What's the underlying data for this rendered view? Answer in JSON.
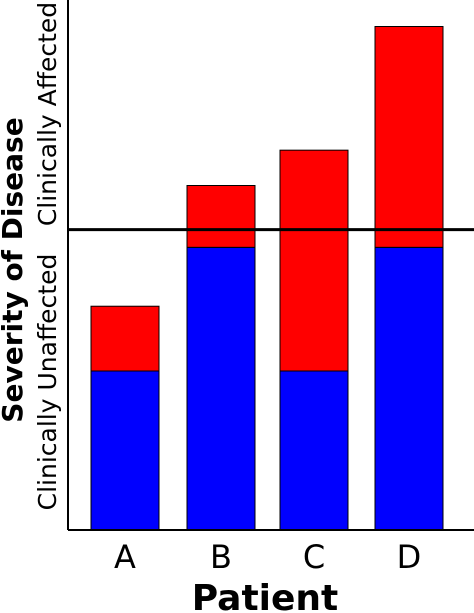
{
  "chart_data": {
    "type": "bar",
    "stacked": true,
    "categories": [
      "A",
      "B",
      "C",
      "D"
    ],
    "series": [
      {
        "color": "#0000ff",
        "values": [
          2.7,
          4.8,
          2.7,
          4.8
        ]
      },
      {
        "color": "#ff0000",
        "values": [
          1.1,
          1.05,
          3.75,
          3.75
        ]
      }
    ],
    "threshold": 5.1,
    "ylim": [
      0,
      9.0
    ],
    "xlabel": "Patient",
    "ylabel": "Severity of Disease",
    "region_labels": {
      "below": "Clinically Unaffected",
      "above": "Clinically Affected"
    },
    "grid": false,
    "legend": "none",
    "colors": {
      "axis": "#000000",
      "threshold_line": "#000000",
      "bar_stroke": "#000000"
    }
  }
}
